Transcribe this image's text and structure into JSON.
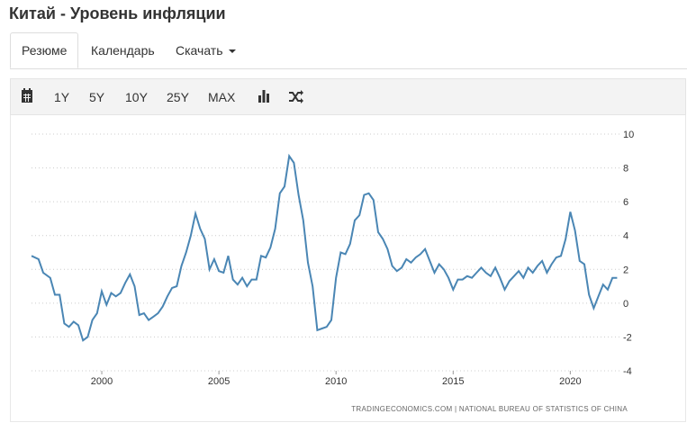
{
  "page": {
    "title": "Китай - Уровень инфляции"
  },
  "tabs": [
    {
      "label": "Резюме",
      "active": true
    },
    {
      "label": "Календарь",
      "active": false
    },
    {
      "label": "Скачать",
      "active": false
    }
  ],
  "toolbar": {
    "calendar_icon": "calendar-icon",
    "ranges": [
      "1Y",
      "5Y",
      "10Y",
      "25Y",
      "MAX"
    ],
    "bar_icon": "bar-chart-icon",
    "compare_icon": "shuffle-icon"
  },
  "credit": "TRADINGECONOMICS.COM  |  NATIONAL BUREAU OF STATISTICS OF CHINA",
  "colors": {
    "line": "#4a86b4",
    "grid": "#cccccc",
    "toolbar_bg": "#f3f3f3"
  },
  "chart_data": {
    "type": "line",
    "title": "",
    "xlabel": "",
    "ylabel": "",
    "xlim": [
      1997.0,
      2022.1
    ],
    "ylim": [
      -4,
      10
    ],
    "xticks": [
      2000,
      2005,
      2010,
      2015,
      2020
    ],
    "yticks": [
      10,
      8,
      6,
      4,
      2,
      0,
      -2,
      -4
    ],
    "grid": "horizontal-dotted",
    "y_axis_position": "right",
    "series": [
      {
        "values_x_years": [
          1997.0,
          1997.3,
          1997.5,
          1997.8,
          1998.0,
          1998.2,
          1998.4,
          1998.6,
          1998.8,
          1999.0,
          1999.2,
          1999.4,
          1999.6,
          1999.8,
          2000.0,
          2000.2,
          2000.4,
          2000.6,
          2000.8,
          2001.0,
          2001.2,
          2001.4,
          2001.6,
          2001.8,
          2002.0,
          2002.2,
          2002.4,
          2002.6,
          2002.8,
          2003.0,
          2003.2,
          2003.4,
          2003.6,
          2003.8,
          2004.0,
          2004.2,
          2004.4,
          2004.6,
          2004.8,
          2005.0,
          2005.2,
          2005.4,
          2005.6,
          2005.8,
          2006.0,
          2006.2,
          2006.4,
          2006.6,
          2006.8,
          2007.0,
          2007.2,
          2007.4,
          2007.6,
          2007.8,
          2008.0,
          2008.2,
          2008.4,
          2008.6,
          2008.8,
          2009.0,
          2009.2,
          2009.4,
          2009.6,
          2009.8,
          2010.0,
          2010.2,
          2010.4,
          2010.6,
          2010.8,
          2011.0,
          2011.2,
          2011.4,
          2011.6,
          2011.8,
          2012.0,
          2012.2,
          2012.4,
          2012.6,
          2012.8,
          2013.0,
          2013.2,
          2013.4,
          2013.6,
          2013.8,
          2014.0,
          2014.2,
          2014.4,
          2014.6,
          2014.8,
          2015.0,
          2015.2,
          2015.4,
          2015.6,
          2015.8,
          2016.0,
          2016.2,
          2016.4,
          2016.6,
          2016.8,
          2017.0,
          2017.2,
          2017.4,
          2017.6,
          2017.8,
          2018.0,
          2018.2,
          2018.4,
          2018.6,
          2018.8,
          2019.0,
          2019.2,
          2019.4,
          2019.6,
          2019.8,
          2020.0,
          2020.2,
          2020.4,
          2020.6,
          2020.8,
          2021.0,
          2021.2,
          2021.4,
          2021.6,
          2021.8,
          2022.0
        ],
        "values": [
          2.8,
          2.6,
          1.8,
          1.5,
          0.5,
          0.5,
          -1.2,
          -1.4,
          -1.1,
          -1.3,
          -2.2,
          -2.0,
          -1.0,
          -0.6,
          0.7,
          -0.1,
          0.6,
          0.4,
          0.6,
          1.2,
          1.7,
          1.0,
          -0.7,
          -0.6,
          -1.0,
          -0.8,
          -0.6,
          -0.2,
          0.4,
          0.9,
          1.0,
          2.2,
          3.0,
          4.0,
          5.3,
          4.4,
          3.8,
          2.0,
          2.6,
          1.9,
          1.8,
          2.8,
          1.4,
          1.1,
          1.5,
          1.0,
          1.4,
          1.4,
          2.8,
          2.7,
          3.3,
          4.4,
          6.5,
          6.9,
          8.7,
          8.3,
          6.4,
          4.9,
          2.4,
          1.0,
          -1.6,
          -1.5,
          -1.4,
          -1.0,
          1.5,
          3.0,
          2.9,
          3.5,
          4.9,
          5.2,
          6.4,
          6.5,
          6.1,
          4.2,
          3.8,
          3.2,
          2.2,
          1.9,
          2.1,
          2.6,
          2.4,
          2.7,
          2.9,
          3.2,
          2.5,
          1.8,
          2.3,
          2.0,
          1.5,
          0.8,
          1.4,
          1.4,
          1.6,
          1.5,
          1.8,
          2.1,
          1.8,
          1.6,
          2.1,
          1.5,
          0.8,
          1.3,
          1.6,
          1.9,
          1.5,
          2.1,
          1.8,
          2.2,
          2.5,
          1.8,
          2.3,
          2.7,
          2.8,
          3.8,
          5.4,
          4.3,
          2.5,
          2.3,
          0.5,
          -0.3,
          0.4,
          1.1,
          0.8,
          1.5,
          1.5
        ]
      }
    ]
  }
}
